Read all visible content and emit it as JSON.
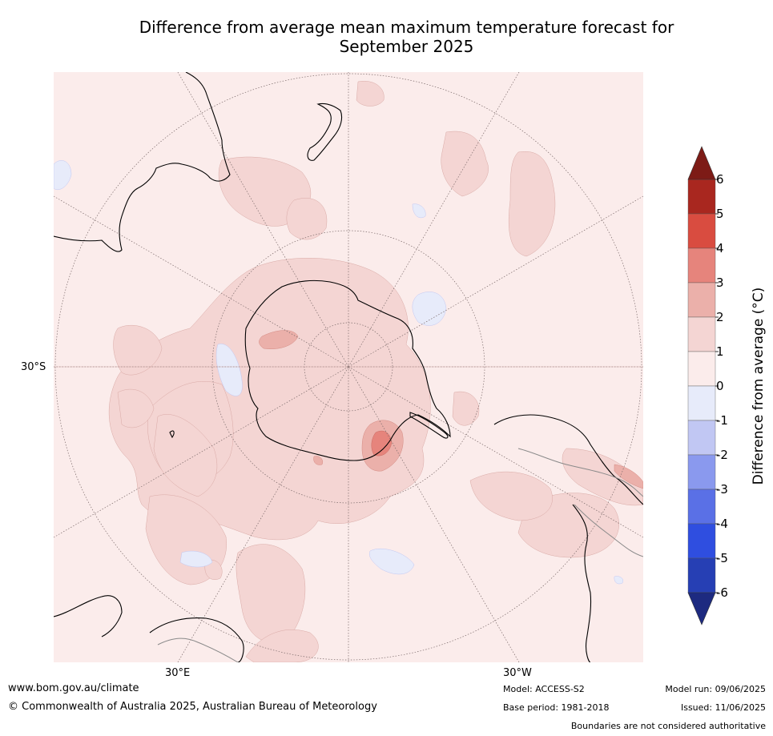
{
  "title": {
    "line1": "Difference from average mean maximum temperature forecast for",
    "line2": "September 2025"
  },
  "map": {
    "lat_label": "30°S",
    "lon_labels": {
      "east": "30°E",
      "west": "30°W"
    },
    "colors": {
      "ocean_base": "#fbeceb",
      "warm_1_2": "#f4d5d3",
      "warm_2_3": "#ebb0aa",
      "warm_3_4": "#e6847c",
      "cool_0_m1": "#e7ebfa",
      "coast": "#000000",
      "graticule": "#7b6a6a"
    }
  },
  "colorbar": {
    "label": "Difference from average (°C)",
    "ticks": [
      "6",
      "5",
      "4",
      "3",
      "2",
      "1",
      "0",
      "-1",
      "-2",
      "-3",
      "-4",
      "-5",
      "-6"
    ],
    "colors": [
      "#a9271f",
      "#d94c40",
      "#e6847c",
      "#ebb0aa",
      "#f4d5d3",
      "#fbeceb",
      "#e7ebfa",
      "#c1c7f3",
      "#8a99ee",
      "#5a70e6",
      "#2f4ee0",
      "#263fb4"
    ],
    "top_arrow_color": "#7d1b16",
    "bottom_arrow_color": "#1d2a80"
  },
  "footer": {
    "website": "www.bom.gov.au/climate",
    "copyright": "© Commonwealth of Australia 2025, Australian Bureau of Meteorology",
    "model": "Model: ACCESS-S2",
    "base_period": "Base period: 1981-2018",
    "model_run": "Model run: 09/06/2025",
    "issued": "Issued: 11/06/2025",
    "disclaimer": "Boundaries are not considered authoritative"
  }
}
